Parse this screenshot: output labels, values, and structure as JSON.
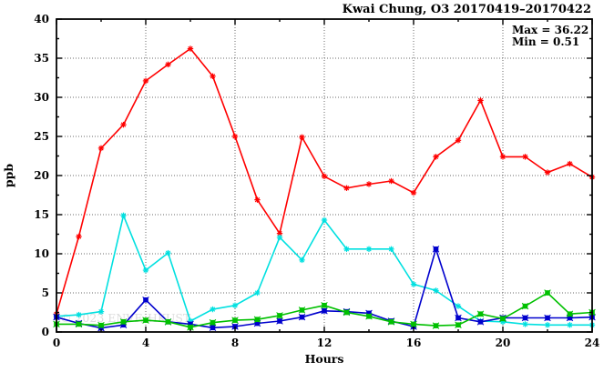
{
  "chart_data": {
    "type": "line",
    "title": "Kwai Chung, O3 20170419–20170422",
    "xlabel": "Hours",
    "ylabel": "ppb",
    "xlim": [
      0,
      24
    ],
    "ylim": [
      0,
      40
    ],
    "x_major_ticks": [
      0,
      4,
      8,
      12,
      16,
      20,
      24
    ],
    "x_minor_step": 2,
    "y_major_ticks": [
      0,
      5,
      10,
      15,
      20,
      25,
      30,
      35,
      40
    ],
    "y_minor_step": 2.5,
    "grid_x": [
      4,
      8,
      12,
      16,
      20
    ],
    "grid_y": [
      5,
      10,
      15,
      20,
      25,
      30,
      35
    ],
    "grid_on": true,
    "legend_position": "none",
    "annotations": {
      "max_label": "Max = 36.22",
      "min_label": "Min =  0.51"
    },
    "watermark": "© 2023 ENVF, HKUST",
    "x": [
      0,
      1,
      2,
      3,
      4,
      5,
      6,
      7,
      8,
      9,
      10,
      11,
      12,
      13,
      14,
      15,
      16,
      17,
      18,
      19,
      20,
      21,
      22,
      23,
      24
    ],
    "series": [
      {
        "name": "red-line",
        "color": "#ff0000",
        "marker": "asterisk",
        "values": [
          2.3,
          12.2,
          23.5,
          26.5,
          32.1,
          34.2,
          36.22,
          32.7,
          25.0,
          16.9,
          12.6,
          24.9,
          19.9,
          18.4,
          18.9,
          19.3,
          17.8,
          22.4,
          24.5,
          29.6,
          22.4,
          22.4,
          20.4,
          21.5,
          19.8
        ]
      },
      {
        "name": "cyan-line",
        "color": "#00e0e0",
        "marker": "asterisk",
        "values": [
          2.0,
          2.2,
          2.6,
          14.9,
          7.9,
          10.1,
          1.4,
          2.9,
          3.4,
          5.0,
          12.1,
          9.2,
          14.3,
          10.6,
          10.6,
          10.6,
          6.1,
          5.3,
          3.3,
          1.4,
          1.3,
          1.0,
          0.9,
          0.9,
          0.9
        ]
      },
      {
        "name": "blue-line",
        "color": "#0000cd",
        "marker": "square",
        "values": [
          1.9,
          1.1,
          0.51,
          0.9,
          4.1,
          1.3,
          1.0,
          0.55,
          0.7,
          1.1,
          1.4,
          1.9,
          2.7,
          2.6,
          2.4,
          1.4,
          0.7,
          10.6,
          1.8,
          1.3,
          1.8,
          1.8,
          1.8,
          1.8,
          1.9
        ]
      },
      {
        "name": "green-line",
        "color": "#00c000",
        "marker": "square",
        "values": [
          1.0,
          1.0,
          0.85,
          1.3,
          1.5,
          1.3,
          0.6,
          1.2,
          1.5,
          1.6,
          2.1,
          2.8,
          3.4,
          2.5,
          2.0,
          1.3,
          1.0,
          0.8,
          0.9,
          2.3,
          1.7,
          3.3,
          5.0,
          2.3,
          2.5
        ]
      }
    ]
  }
}
